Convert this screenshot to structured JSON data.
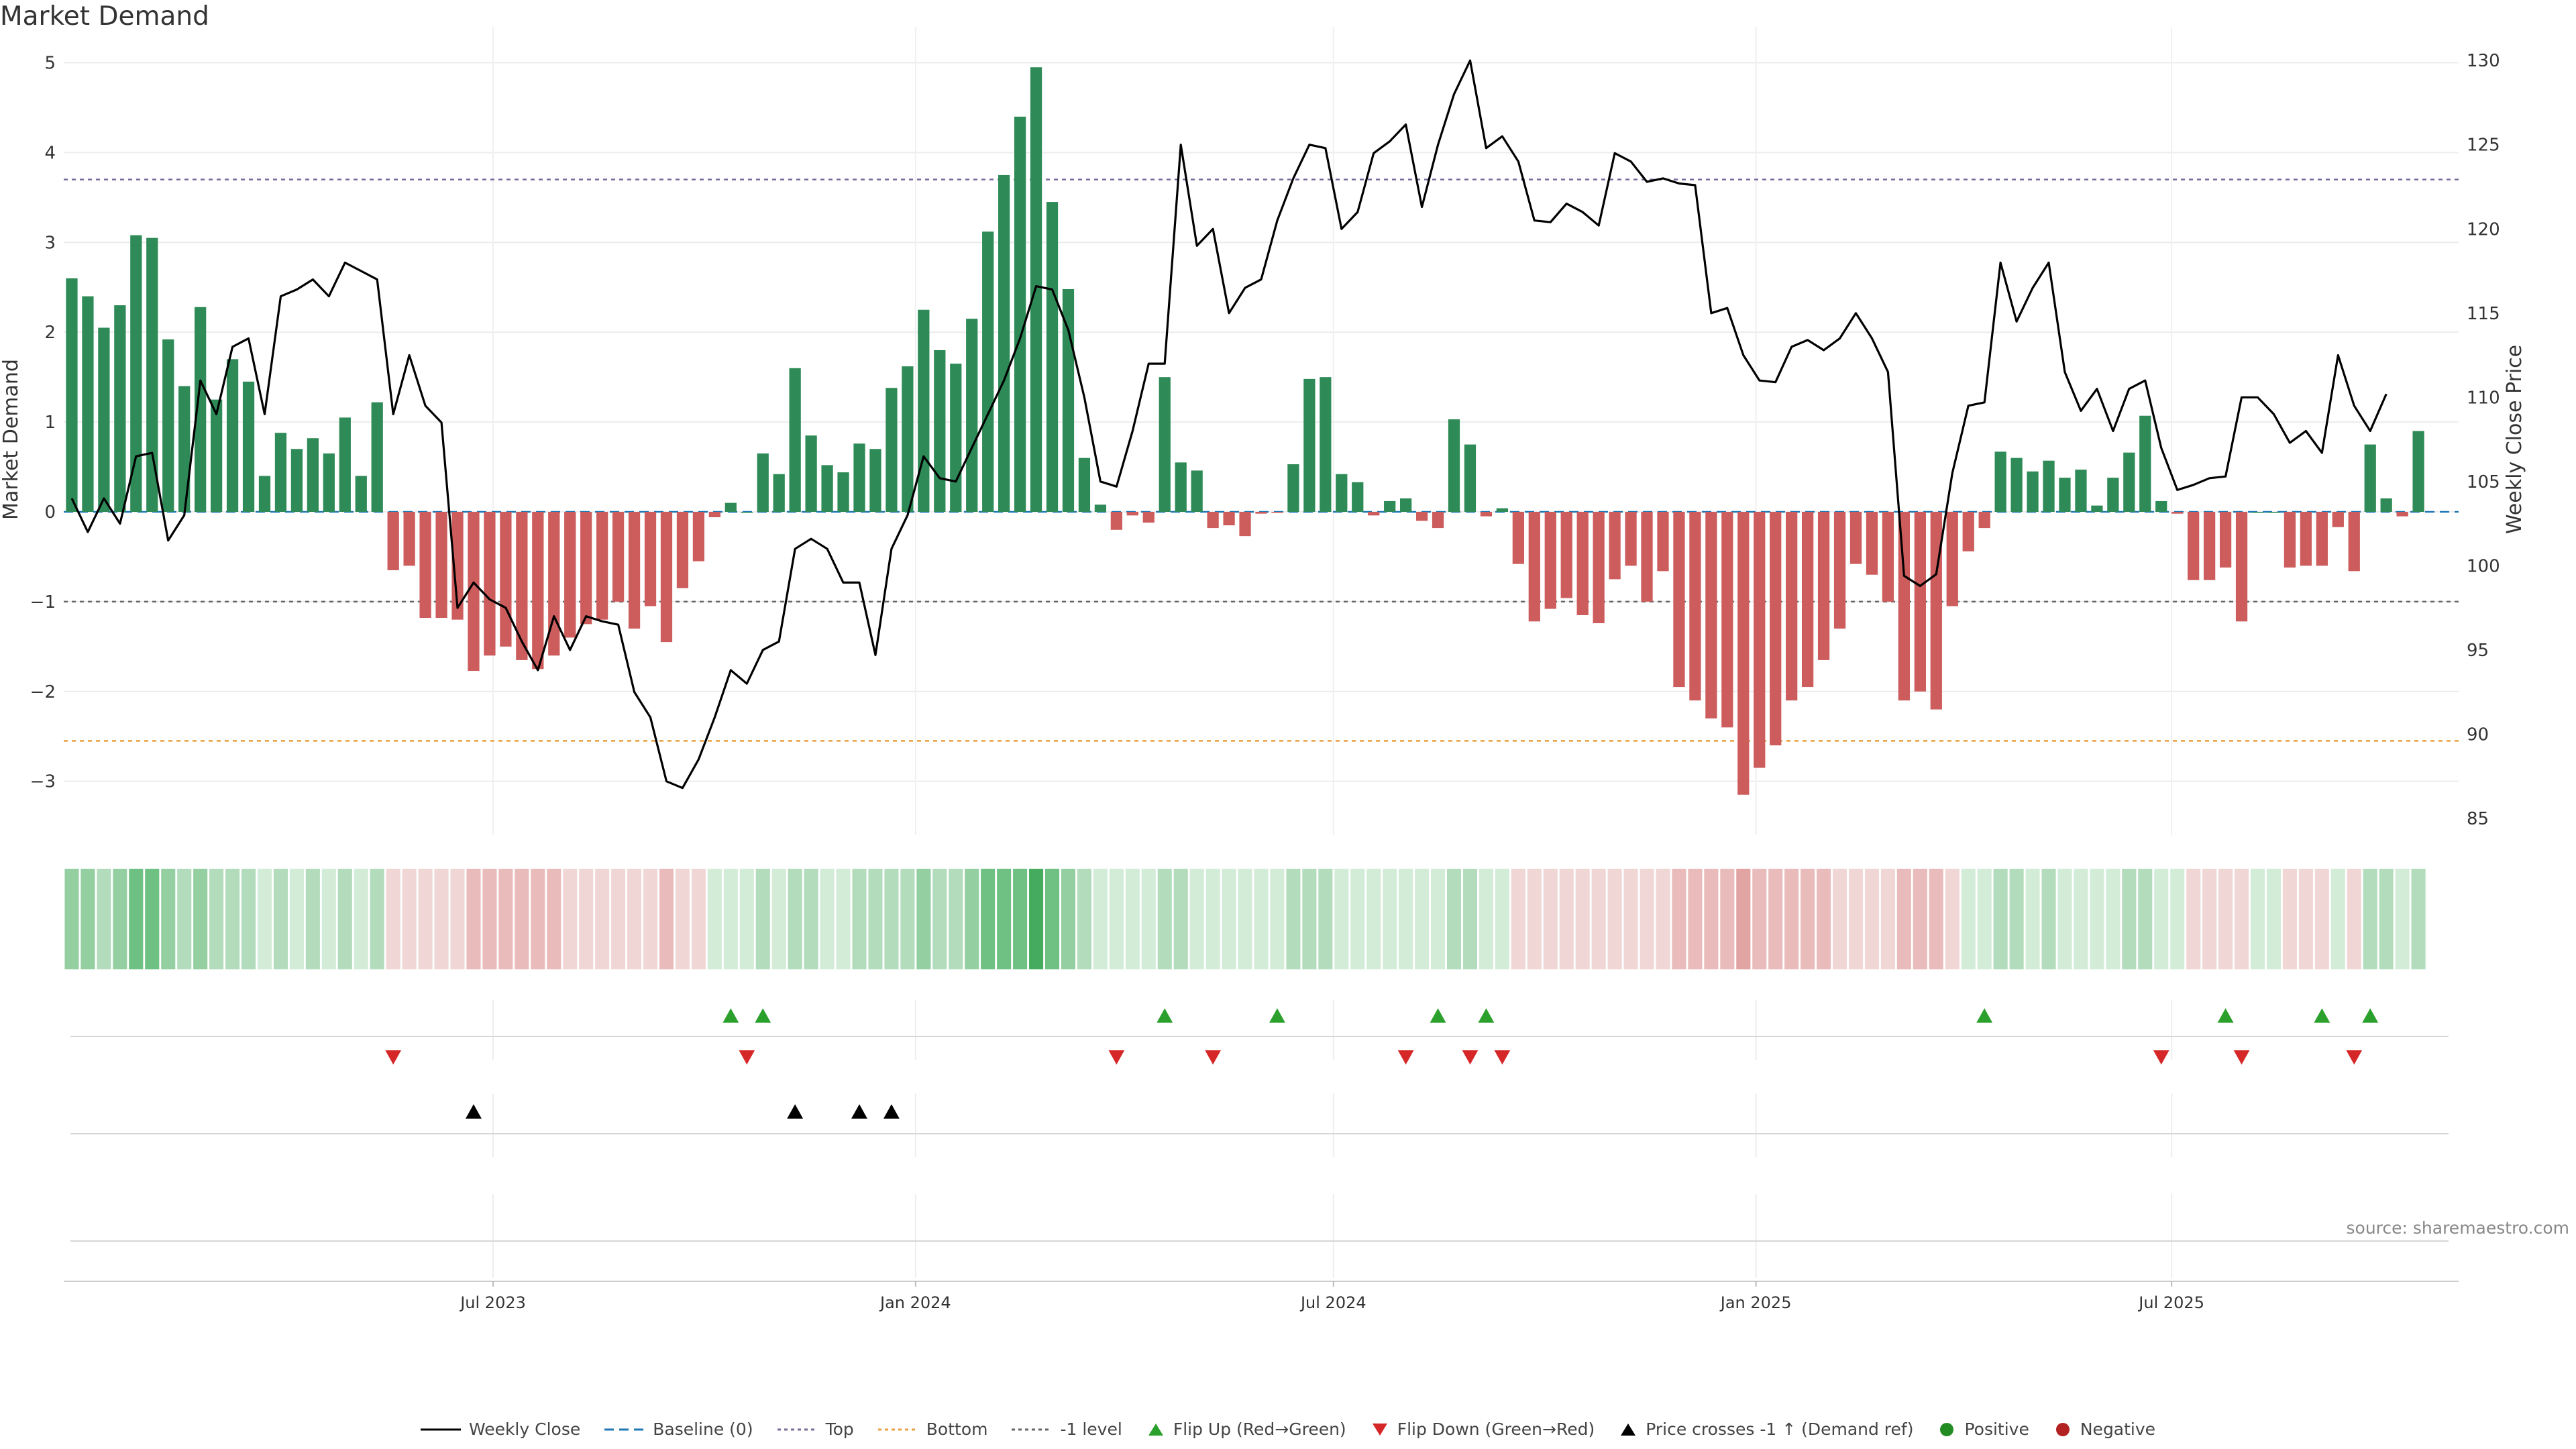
{
  "title": "Market Demand",
  "source": "source: sharemaestro.com",
  "colors": {
    "positive": "#2e8b57",
    "negative": "#cd5c5c",
    "price": "#000000",
    "top_line": "#7a6a9a",
    "bottom_line": "#e8a040",
    "minus1_line": "#666666",
    "flip_up": "#2ca02c",
    "flip_down": "#d62728"
  },
  "chart_data": {
    "type": "bar",
    "ylabel": "Market Demand",
    "ylabel_right": "Weekly Close Price",
    "ylim": [
      -3.6,
      5.4
    ],
    "ylim_right": [
      84,
      132
    ],
    "yticks": [
      5,
      4,
      3,
      2,
      1,
      0,
      -1,
      -2,
      -3
    ],
    "yticks_labels": [
      "5",
      "4",
      "3",
      "2",
      "1",
      "0",
      "−1",
      "−2",
      "−3"
    ],
    "yticks_right": [
      130,
      125,
      120,
      115,
      110,
      105,
      100,
      95,
      90,
      85
    ],
    "x_start": "2022-12-26",
    "x_end": "2025-11-03",
    "x_ticks": [
      {
        "date": "2023-07-01",
        "label": "Jul 2023"
      },
      {
        "date": "2024-01-01",
        "label": "Jan 2024"
      },
      {
        "date": "2024-07-01",
        "label": "Jul 2024"
      },
      {
        "date": "2025-01-01",
        "label": "Jan 2025"
      },
      {
        "date": "2025-07-01",
        "label": "Jul 2025"
      }
    ],
    "reference_lines": {
      "top": 3.7,
      "bottom": -2.55,
      "minus1": -1.0,
      "baseline": 0
    },
    "series": [
      {
        "name": "Market Demand",
        "values": [
          2.6,
          2.4,
          2.05,
          2.3,
          3.08,
          3.05,
          1.92,
          1.4,
          2.28,
          1.25,
          1.7,
          1.45,
          0.4,
          0.88,
          0.7,
          0.82,
          0.65,
          1.05,
          0.4,
          1.22,
          -0.65,
          -0.6,
          -1.18,
          -1.18,
          -1.2,
          -1.77,
          -1.6,
          -1.5,
          -1.65,
          -1.75,
          -1.6,
          -1.4,
          -1.25,
          -1.2,
          -1.0,
          -1.3,
          -1.05,
          -1.45,
          -0.85,
          -0.55,
          -0.06,
          0.1,
          0.0,
          0.65,
          0.42,
          1.6,
          0.85,
          0.52,
          0.44,
          0.76,
          0.7,
          1.38,
          1.62,
          2.25,
          1.8,
          1.65,
          2.15,
          3.12,
          3.75,
          4.4,
          4.95,
          3.45,
          2.48,
          0.6,
          0.08,
          -0.2,
          -0.04,
          -0.12,
          1.5,
          0.55,
          0.46,
          -0.18,
          -0.15,
          -0.27,
          -0.02,
          -0.01,
          0.53,
          1.48,
          1.5,
          0.42,
          0.33,
          -0.04,
          0.12,
          0.15,
          -0.1,
          -0.18,
          1.03,
          0.75,
          -0.05,
          0.04,
          -0.58,
          -1.22,
          -1.08,
          -0.96,
          -1.15,
          -1.24,
          -0.75,
          -0.6,
          -1.0,
          -0.66,
          -1.95,
          -2.1,
          -2.3,
          -2.4,
          -3.15,
          -2.85,
          -2.6,
          -2.1,
          -1.95,
          -1.65,
          -1.3,
          -0.58,
          -0.7,
          -1.0,
          -2.1,
          -2.0,
          -2.2,
          -1.05,
          -0.44,
          -0.18,
          0.67,
          0.6,
          0.45,
          0.57,
          0.38,
          0.47,
          0.07,
          0.38,
          0.66,
          1.07,
          0.12,
          -0.02,
          -0.76,
          -0.76,
          -0.62,
          -1.22,
          0.0,
          0.0,
          -0.62,
          -0.6,
          -0.6,
          -0.17,
          -0.66,
          0.75,
          0.15,
          -0.05,
          0.9
        ]
      },
      {
        "name": "Weekly Close",
        "axis": "right",
        "values": [
          104,
          102,
          104,
          102.5,
          106.5,
          106.7,
          101.5,
          103,
          111,
          109,
          113,
          113.5,
          109,
          116,
          116.4,
          117,
          116,
          118,
          117.5,
          117,
          109,
          112.5,
          109.5,
          108.5,
          97.5,
          99,
          98,
          97.5,
          95.5,
          93.8,
          97,
          95,
          97,
          96.7,
          96.5,
          92.5,
          91,
          87.2,
          86.8,
          88.5,
          91,
          93.8,
          93,
          95,
          95.5,
          101,
          101.6,
          101,
          99,
          99,
          94.7,
          101,
          103,
          106.5,
          105.2,
          105,
          107,
          109,
          111,
          113.5,
          116.6,
          116.4,
          114,
          110,
          105,
          104.7,
          108,
          112,
          112,
          125,
          119,
          120,
          115,
          116.5,
          117,
          120.5,
          123,
          125,
          124.8,
          120,
          121,
          124.5,
          125.2,
          126.2,
          121.3,
          125,
          128,
          130,
          124.8,
          125.5,
          124,
          120.5,
          120.4,
          121.5,
          121,
          120.2,
          124.5,
          124,
          122.8,
          123,
          122.7,
          122.6,
          115,
          115.3,
          112.5,
          111,
          110.9,
          113,
          113.4,
          112.8,
          113.5,
          115,
          113.5,
          111.5,
          99.4,
          98.8,
          99.5,
          105.5,
          109.5,
          109.7,
          118,
          114.5,
          116.5,
          118,
          111.5,
          109.2,
          110.5,
          108,
          110.5,
          111,
          107,
          104.5,
          104.8,
          105.2,
          105.3,
          110,
          110,
          109,
          107.3,
          108,
          106.7,
          112.5,
          109.5,
          108,
          110.2
        ]
      }
    ],
    "state_strip": [
      2,
      2,
      1,
      2,
      3,
      3,
      2,
      1,
      2,
      1,
      1,
      1,
      0,
      1,
      0,
      1,
      0,
      1,
      0,
      1,
      -1,
      -1,
      -1,
      -1,
      -1,
      -2,
      -2,
      -2,
      -2,
      -2,
      -2,
      -1,
      -1,
      -1,
      -1,
      -1,
      -1,
      -2,
      -1,
      -1,
      0,
      0,
      0,
      1,
      0,
      1,
      1,
      0,
      0,
      1,
      1,
      1,
      1,
      2,
      1,
      1,
      2,
      3,
      3,
      3,
      4,
      3,
      2,
      1,
      0,
      0,
      0,
      0,
      1,
      1,
      0,
      0,
      0,
      0,
      0,
      0,
      1,
      1,
      1,
      0,
      0,
      0,
      0,
      0,
      0,
      0,
      1,
      1,
      0,
      0,
      -1,
      -1,
      -1,
      -1,
      -1,
      -1,
      -1,
      -1,
      -1,
      -1,
      -2,
      -2,
      -2,
      -2,
      -3,
      -2,
      -2,
      -2,
      -2,
      -2,
      -1,
      -1,
      -1,
      -1,
      -2,
      -2,
      -2,
      -1,
      0,
      0,
      1,
      1,
      0,
      1,
      0,
      0,
      0,
      0,
      1,
      1,
      0,
      0,
      -1,
      -1,
      -1,
      -1,
      0,
      0,
      -1,
      -1,
      -1,
      0,
      -1,
      1,
      1,
      0,
      1
    ],
    "flip_up_weeks": [
      41,
      43,
      68,
      75,
      85,
      88,
      119,
      134,
      140,
      143
    ],
    "flip_down_weeks": [
      20,
      42,
      65,
      71,
      83,
      87,
      89,
      130,
      135,
      142
    ],
    "price_cross_up_weeks": [
      25,
      45,
      49,
      51
    ],
    "legend": [
      {
        "label": "Weekly Close",
        "kind": "line-solid",
        "color": "#000000"
      },
      {
        "label": "Baseline (0)",
        "kind": "line-dash",
        "color": "#1f77b4"
      },
      {
        "label": "Top",
        "kind": "line-dot",
        "color": "#7a6a9a"
      },
      {
        "label": "Bottom",
        "kind": "line-dot",
        "color": "#e8a040"
      },
      {
        "label": "-1 level",
        "kind": "line-dot",
        "color": "#666666"
      },
      {
        "label": "Flip Up (Red→Green)",
        "kind": "tri-up",
        "color": "#2ca02c"
      },
      {
        "label": "Flip Down (Green→Red)",
        "kind": "tri-down",
        "color": "#d62728"
      },
      {
        "label": "Price crosses -1 ↑ (Demand ref)",
        "kind": "tri-up",
        "color": "#000000"
      },
      {
        "label": "Positive",
        "kind": "dot",
        "color": "#228b22"
      },
      {
        "label": "Negative",
        "kind": "dot",
        "color": "#b22222"
      }
    ]
  }
}
